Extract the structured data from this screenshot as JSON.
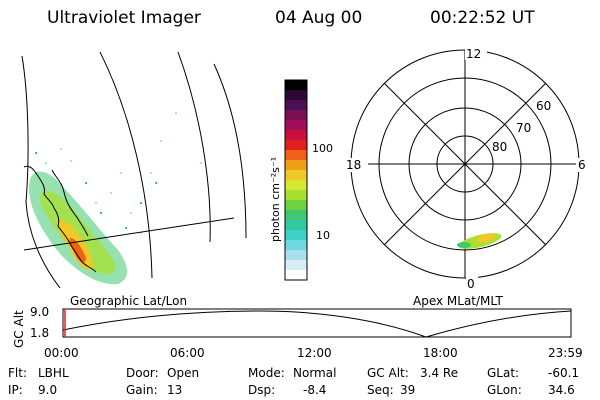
{
  "header": {
    "instrument": "Ultraviolet Imager",
    "date": "04 Aug 00",
    "time": "00:22:52 UT"
  },
  "colorbar": {
    "unit_label": "photon cm⁻²s⁻¹",
    "ticks": [
      "100",
      "10"
    ],
    "colors": [
      "#000000",
      "#2a0a33",
      "#4a0f55",
      "#7a1050",
      "#a0105a",
      "#c8103c",
      "#e02020",
      "#f06018",
      "#f0a018",
      "#f0c828",
      "#d8e830",
      "#a8e030",
      "#70d040",
      "#40c870",
      "#30c8a0",
      "#40d0c8",
      "#70d8e0",
      "#a8e0ee",
      "#d8eef6",
      "#ffffff"
    ]
  },
  "left_panel": {
    "caption": "Geographic Lat/Lon"
  },
  "right_panel": {
    "caption": "Apex MLat/MLT",
    "mlt_labels": [
      "12",
      "18",
      "6",
      "0"
    ],
    "lat_labels": [
      "60",
      "70",
      "80"
    ]
  },
  "timeline": {
    "ylabel": "GC Alt",
    "yticks": [
      "9.0",
      "1.8"
    ],
    "xticks": [
      "00:00",
      "06:00",
      "12:00",
      "18:00",
      "23:59"
    ]
  },
  "info": {
    "flt_label": "Flt:",
    "flt_value": "LBHL",
    "ip_label": "IP:",
    "ip_value": "9.0",
    "door_label": "Door:",
    "door_value": "Open",
    "gain_label": "Gain:",
    "gain_value": "13",
    "mode_label": "Mode:",
    "mode_value": "Normal",
    "dsp_label": "Dsp:",
    "dsp_value": "-8.4",
    "gcalt_label": "GC Alt:",
    "gcalt_value": "3.4 Re",
    "seq_label": "Seq:",
    "seq_value": "39",
    "glat_label": "GLat:",
    "glat_value": "-60.1",
    "glon_label": "GLon:",
    "glon_value": "34.6"
  }
}
